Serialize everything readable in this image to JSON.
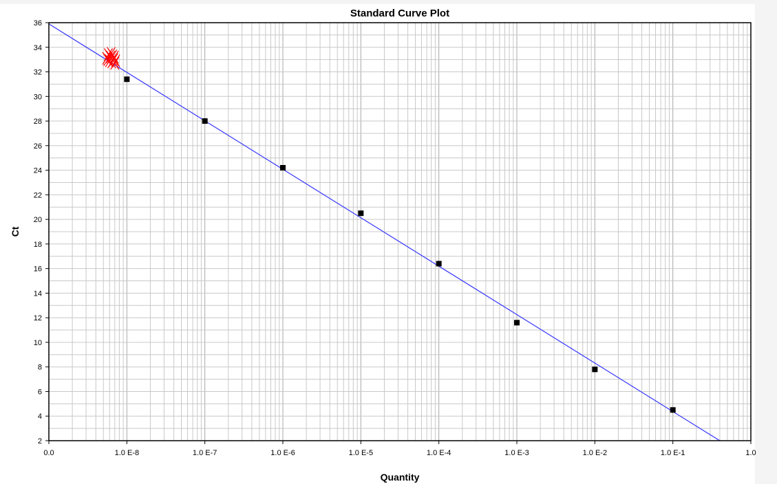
{
  "chart_data": {
    "type": "scatter",
    "title": "Standard Curve Plot",
    "xlabel": "Quantity",
    "ylabel": "Ct",
    "x_scale": "log",
    "xlim": [
      1e-09,
      1
    ],
    "ylim": [
      2,
      36
    ],
    "grid": true,
    "x_tick_labels": [
      "0.0",
      "1.0 E-8",
      "1.0 E-7",
      "1.0 E-6",
      "1.0 E-5",
      "1.0 E-4",
      "1.0 E-3",
      "1.0 E-2",
      "1.0 E-1",
      "1.0"
    ],
    "y_ticks": [
      2,
      4,
      6,
      8,
      10,
      12,
      14,
      16,
      18,
      20,
      22,
      24,
      26,
      28,
      30,
      32,
      34,
      36
    ],
    "standards": {
      "marker": "square",
      "color": "#000000",
      "x": [
        1e-08,
        1e-07,
        1e-06,
        1e-05,
        0.0001,
        0.001,
        0.01,
        0.1
      ],
      "y": [
        31.4,
        28.0,
        24.2,
        20.5,
        16.4,
        11.6,
        7.8,
        4.5
      ]
    },
    "unknowns": {
      "marker": "x",
      "color": "#ff0000",
      "x": [
        5.5e-09,
        5.8e-09,
        6e-09,
        6.2e-09,
        6.4e-09,
        6.6e-09,
        6.8e-09,
        7e-09,
        5.7e-09,
        6.3e-09,
        6.9e-09,
        7.2e-09
      ],
      "y": [
        33.1,
        33.4,
        32.9,
        33.2,
        32.8,
        33.3,
        33.0,
        32.7,
        33.0,
        33.5,
        33.2,
        32.9
      ]
    },
    "regression_line": {
      "color": "#3333ff",
      "x": [
        1e-09,
        0.4
      ],
      "y": [
        35.9,
        2.0
      ]
    }
  }
}
